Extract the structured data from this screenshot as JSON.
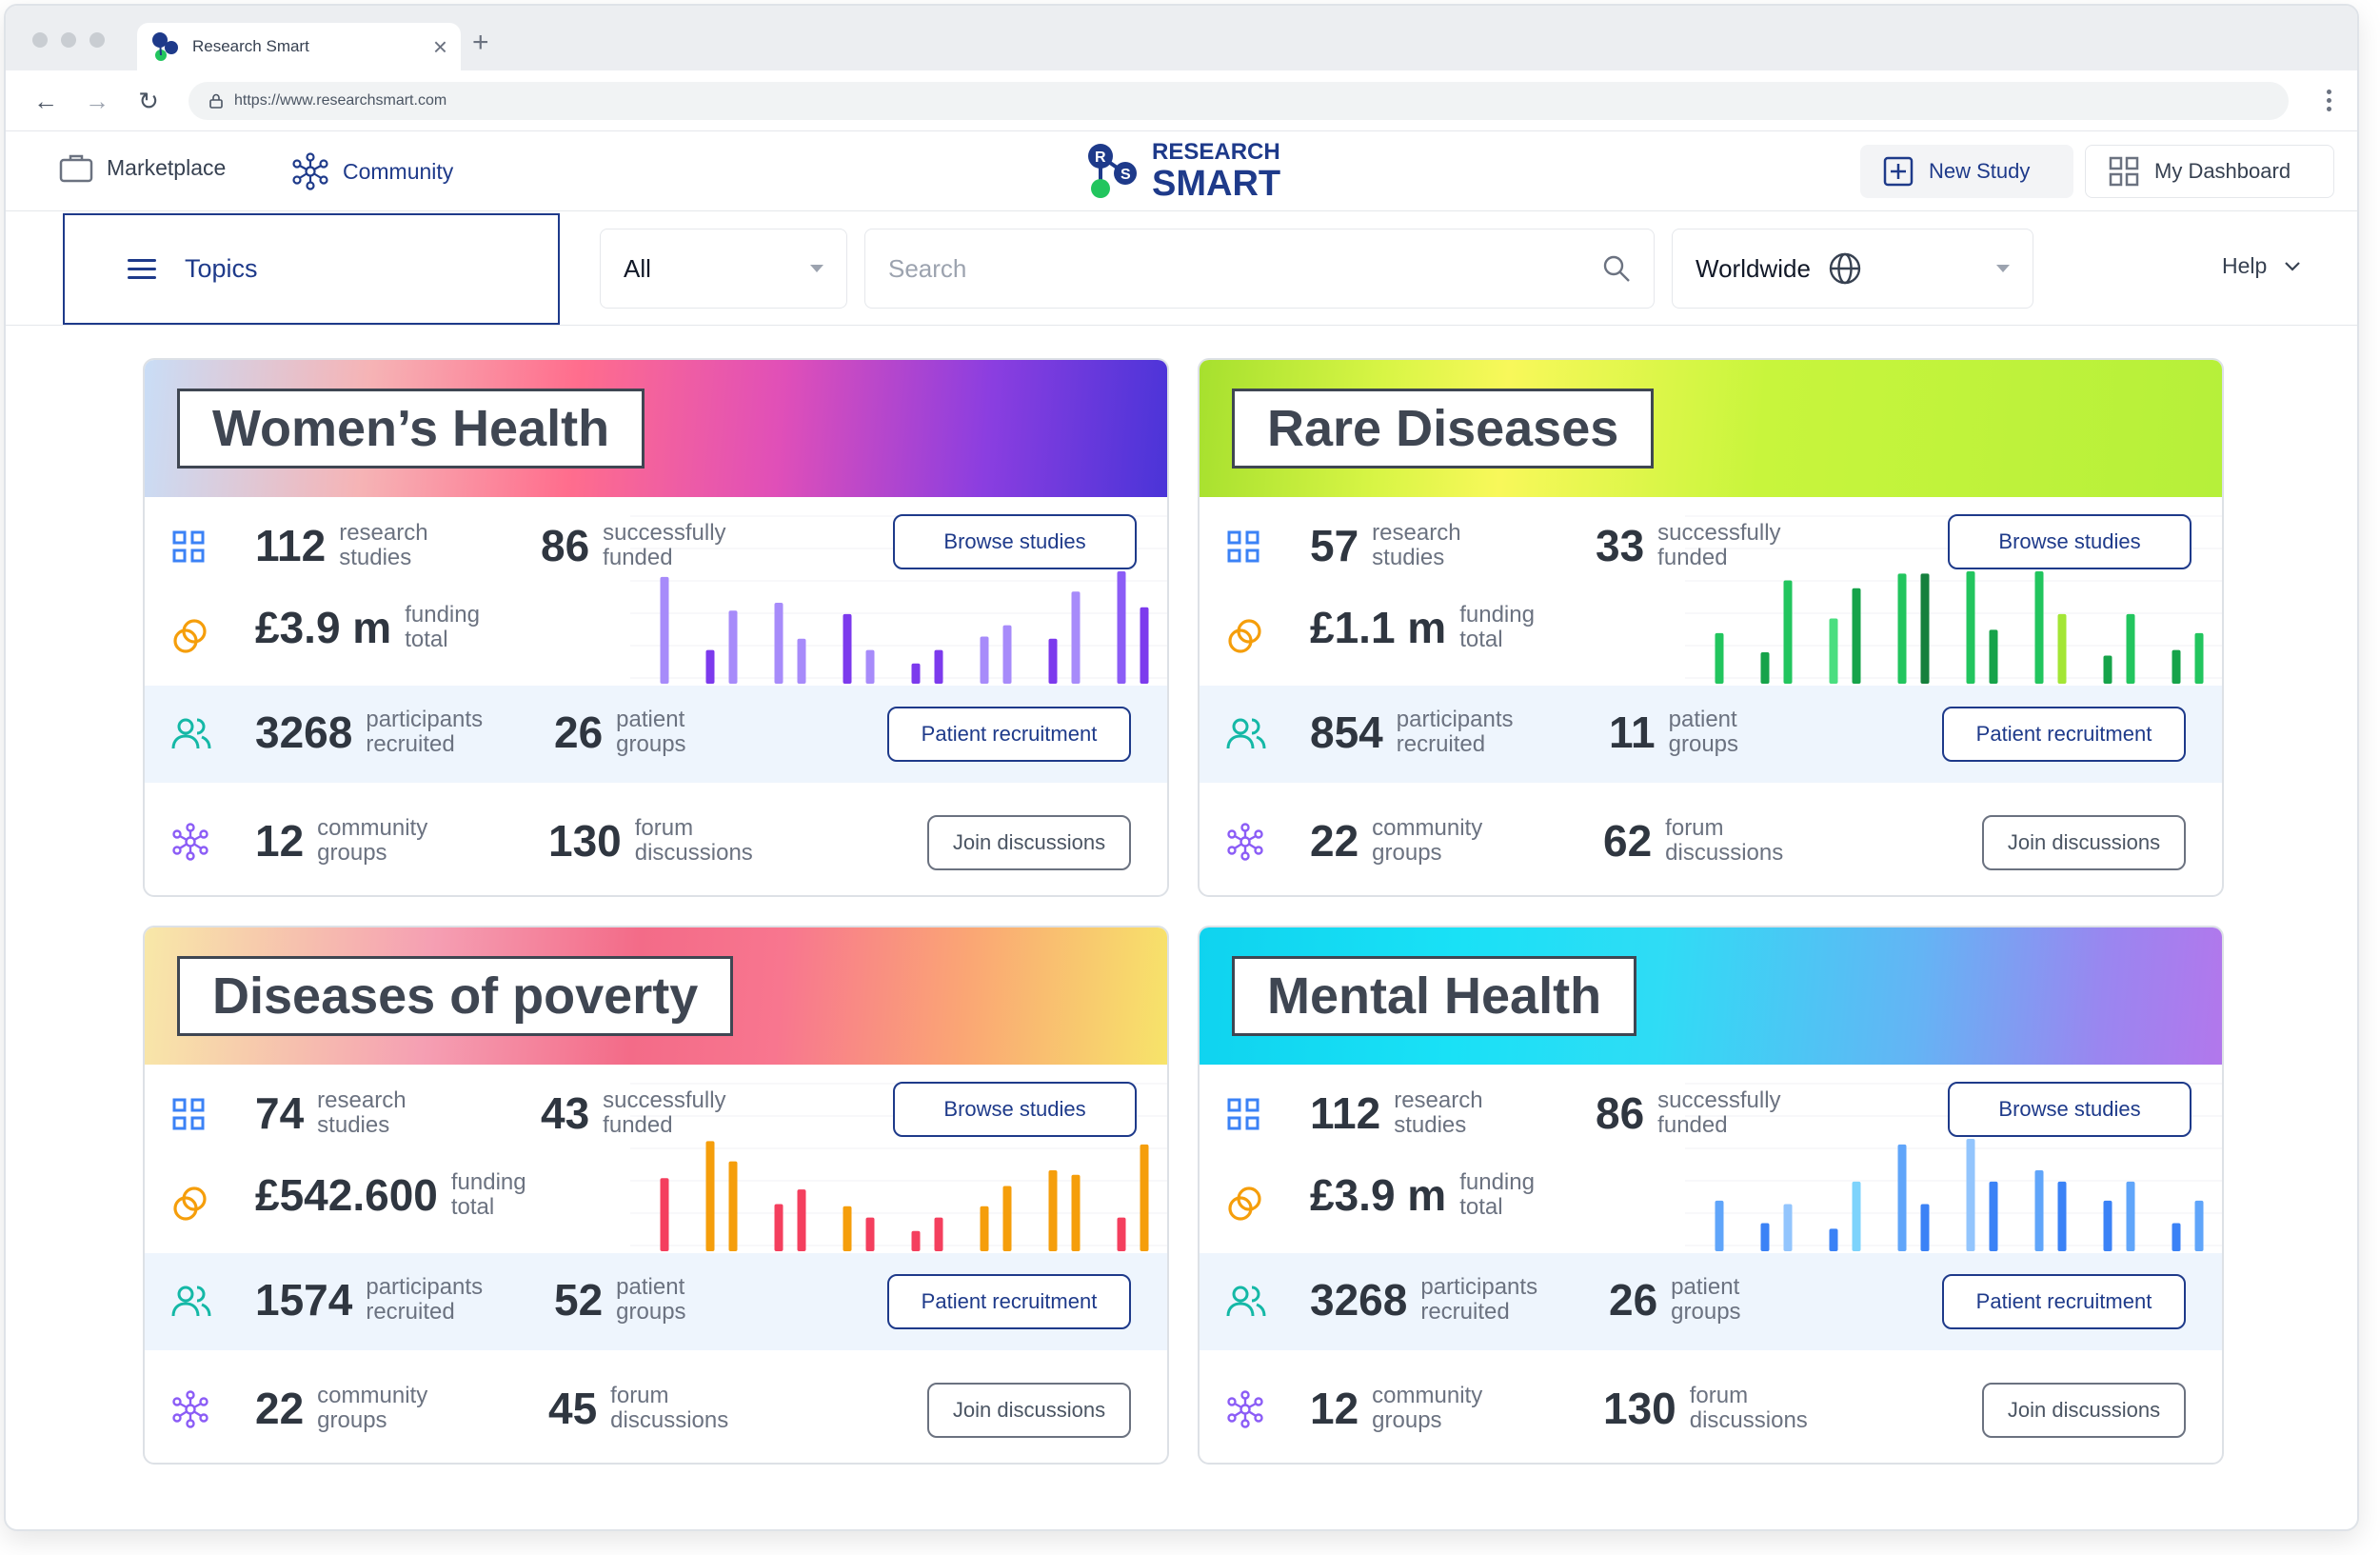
{
  "browser": {
    "tab_title": "Research Smart",
    "url": "https://www.researchsmart.com"
  },
  "header": {
    "marketplace": "Marketplace",
    "community": "Community",
    "logo_line1": "RESEARCH",
    "logo_line2": "SMART",
    "logo_badge_letters": "RS",
    "new_study": "New Study",
    "my_dashboard": "My Dashboard"
  },
  "filters": {
    "topics": "Topics",
    "category": "All",
    "search_placeholder": "Search",
    "region": "Worldwide",
    "help": "Help"
  },
  "labels": {
    "research_1": "research",
    "research_2": "studies",
    "funded_1": "successfully",
    "funded_2": "funded",
    "funding_1": "funding",
    "funding_2": "total",
    "participants_1": "participants",
    "participants_2": "recruited",
    "patient_1": "patient",
    "patient_2": "groups",
    "community_1": "community",
    "community_2": "groups",
    "forum_1": "forum",
    "forum_2": "discussions",
    "browse": "Browse studies",
    "recruit": "Patient recruitment",
    "join": "Join discussions"
  },
  "colors": {
    "brand": "#1e3a8a",
    "grid_icon": "#3b82f6",
    "funding_icon": "#f59e0b",
    "participants_icon": "#14b8a6",
    "community_icon": "#8b5cf6"
  },
  "topics": [
    {
      "title": "Women’s Health",
      "research_studies": "112",
      "successfully_funded": "86",
      "funding_total": "£3.9 m",
      "participants": "3268",
      "patient_groups": "26",
      "community_groups": "12",
      "forum_discussions": "130",
      "chart": {
        "values": [
          0.95,
          0.3,
          0.65,
          0.72,
          0.4,
          0.62,
          0.3,
          0.18,
          0.3,
          0.42,
          0.52,
          0.4,
          0.82,
          1.0,
          0.68
        ],
        "colors": [
          "#a78bfa",
          "#7c3aed",
          "#a78bfa",
          "#a78bfa",
          "#a78bfa",
          "#7c3aed",
          "#a78bfa",
          "#7c3aed",
          "#7c3aed",
          "#a78bfa",
          "#a78bfa",
          "#7c3aed",
          "#a78bfa",
          "#8b5cf6",
          "#7c3aed"
        ]
      }
    },
    {
      "title": "Rare Diseases",
      "research_studies": "57",
      "successfully_funded": "33",
      "funding_total": "£1.1 m",
      "participants": "854",
      "patient_groups": "11",
      "community_groups": "22",
      "forum_discussions": "62",
      "chart": {
        "values": [
          0.45,
          0.28,
          0.92,
          0.58,
          0.85,
          0.98,
          0.98,
          1.0,
          0.48,
          1.0,
          0.62,
          0.25,
          0.62,
          0.3,
          0.45
        ],
        "colors": [
          "#22c55e",
          "#16a34a",
          "#22c55e",
          "#4ade80",
          "#16a34a",
          "#22c55e",
          "#15803d",
          "#22c55e",
          "#16a34a",
          "#22c55e",
          "#a3e635",
          "#16a34a",
          "#22c55e",
          "#16a34a",
          "#22c55e"
        ]
      }
    },
    {
      "title": "Diseases of poverty",
      "research_studies": "74",
      "successfully_funded": "43",
      "funding_total": "£542.600",
      "participants": "1574",
      "patient_groups": "52",
      "community_groups": "22",
      "forum_discussions": "45",
      "chart": {
        "values": [
          0.65,
          0.98,
          0.8,
          0.42,
          0.55,
          0.4,
          0.3,
          0.18,
          0.3,
          0.4,
          0.58,
          0.72,
          0.68,
          0.3,
          0.95
        ],
        "colors": [
          "#f43f5e",
          "#f59e0b",
          "#f59e0b",
          "#f43f5e",
          "#f43f5e",
          "#f59e0b",
          "#f43f5e",
          "#f43f5e",
          "#f43f5e",
          "#f59e0b",
          "#f59e0b",
          "#f59e0b",
          "#f59e0b",
          "#f43f5e",
          "#f59e0b"
        ]
      }
    },
    {
      "title": "Mental Health",
      "research_studies": "112",
      "successfully_funded": "86",
      "funding_total": "£3.9 m",
      "participants": "3268",
      "patient_groups": "26",
      "community_groups": "12",
      "forum_discussions": "130",
      "chart": {
        "values": [
          0.45,
          0.25,
          0.42,
          0.2,
          0.62,
          0.95,
          0.42,
          1.0,
          0.62,
          0.72,
          0.62,
          0.45,
          0.62,
          0.25,
          0.45
        ],
        "colors": [
          "#60a5fa",
          "#3b82f6",
          "#93c5fd",
          "#3b82f6",
          "#7dd3fc",
          "#60a5fa",
          "#3b82f6",
          "#93c5fd",
          "#3b82f6",
          "#60a5fa",
          "#3b82f6",
          "#3b82f6",
          "#60a5fa",
          "#3b82f6",
          "#60a5fa"
        ]
      }
    }
  ]
}
